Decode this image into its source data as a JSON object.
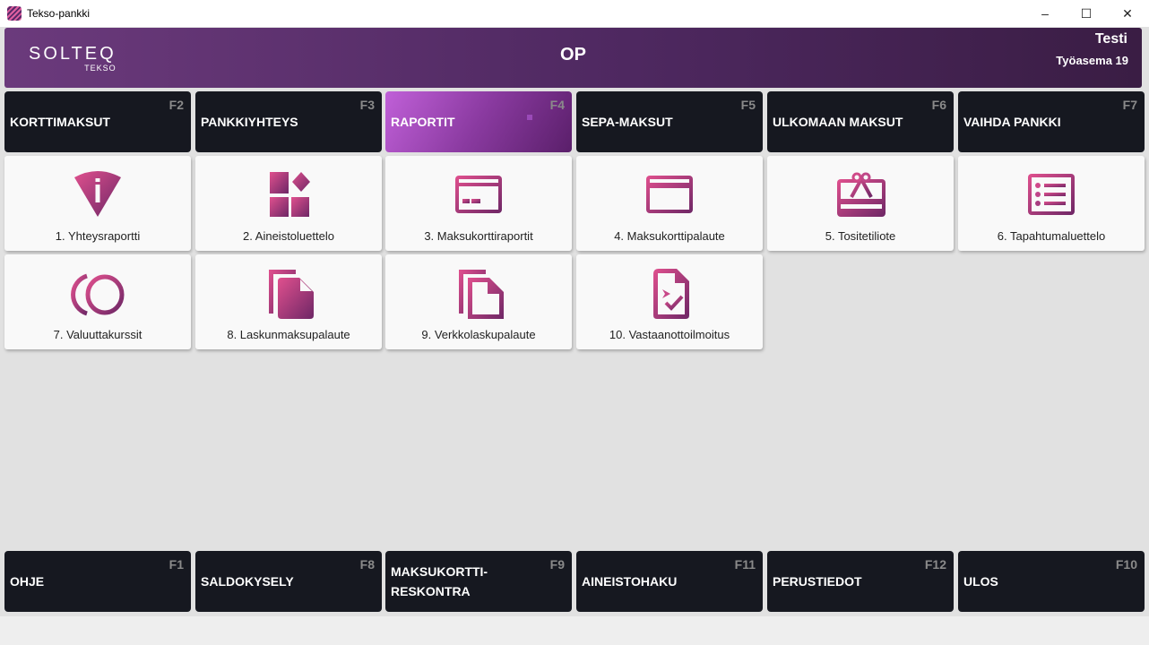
{
  "window": {
    "title": "Tekso-pankki",
    "minimize": "–",
    "maximize": "☐",
    "close": "✕"
  },
  "header": {
    "logo": "SOLTEQ",
    "logo_sub": "TEKSO",
    "bank": "OP",
    "user": "Testi",
    "workstation": "Työasema 19"
  },
  "colors": {
    "accent_pink": "#e0508e",
    "accent_purple": "#7a2a6a",
    "button_bg": "#161820"
  },
  "top_nav": [
    {
      "label": "KORTTIMAKSUT",
      "key": "F2"
    },
    {
      "label": "PANKKIYHTEYS",
      "key": "F3"
    },
    {
      "label": "RAPORTIT",
      "key": "F4",
      "active": true
    },
    {
      "label": "SEPA-MAKSUT",
      "key": "F5"
    },
    {
      "label": "ULKOMAAN MAKSUT",
      "key": "F6"
    },
    {
      "label": "VAIHDA PANKKI",
      "key": "F7"
    }
  ],
  "tiles": [
    {
      "label": "1. Yhteysraportti",
      "icon": "wifi-info-icon"
    },
    {
      "label": "2. Aineistoluettelo",
      "icon": "widgets-icon"
    },
    {
      "label": "3. Maksukorttiraportit",
      "icon": "payment-card-icon"
    },
    {
      "label": "4. Maksukorttipalaute",
      "icon": "credit-card-icon"
    },
    {
      "label": "5. Tositetiliote",
      "icon": "gift-card-icon"
    },
    {
      "label": "6. Tapahtumaluettelo",
      "icon": "list-icon"
    },
    {
      "label": "7. Valuuttakurssit",
      "icon": "currency-icon"
    },
    {
      "label": "8. Laskunmaksupalaute",
      "icon": "copy-file-filled-icon"
    },
    {
      "label": "9. Verkkolaskupalaute",
      "icon": "copy-file-outline-icon"
    },
    {
      "label": "10. Vastaanottoilmoitus",
      "icon": "file-check-icon"
    }
  ],
  "bottom_nav": [
    {
      "label": "OHJE",
      "key": "F1"
    },
    {
      "label": "SALDOKYSELY",
      "key": "F8"
    },
    {
      "label": "MAKSUKORTTI-\nRESKONTRA",
      "key": "F9"
    },
    {
      "label": "AINEISTOHAKU",
      "key": "F11"
    },
    {
      "label": "PERUSTIEDOT",
      "key": "F12"
    },
    {
      "label": "ULOS",
      "key": "F10"
    }
  ]
}
